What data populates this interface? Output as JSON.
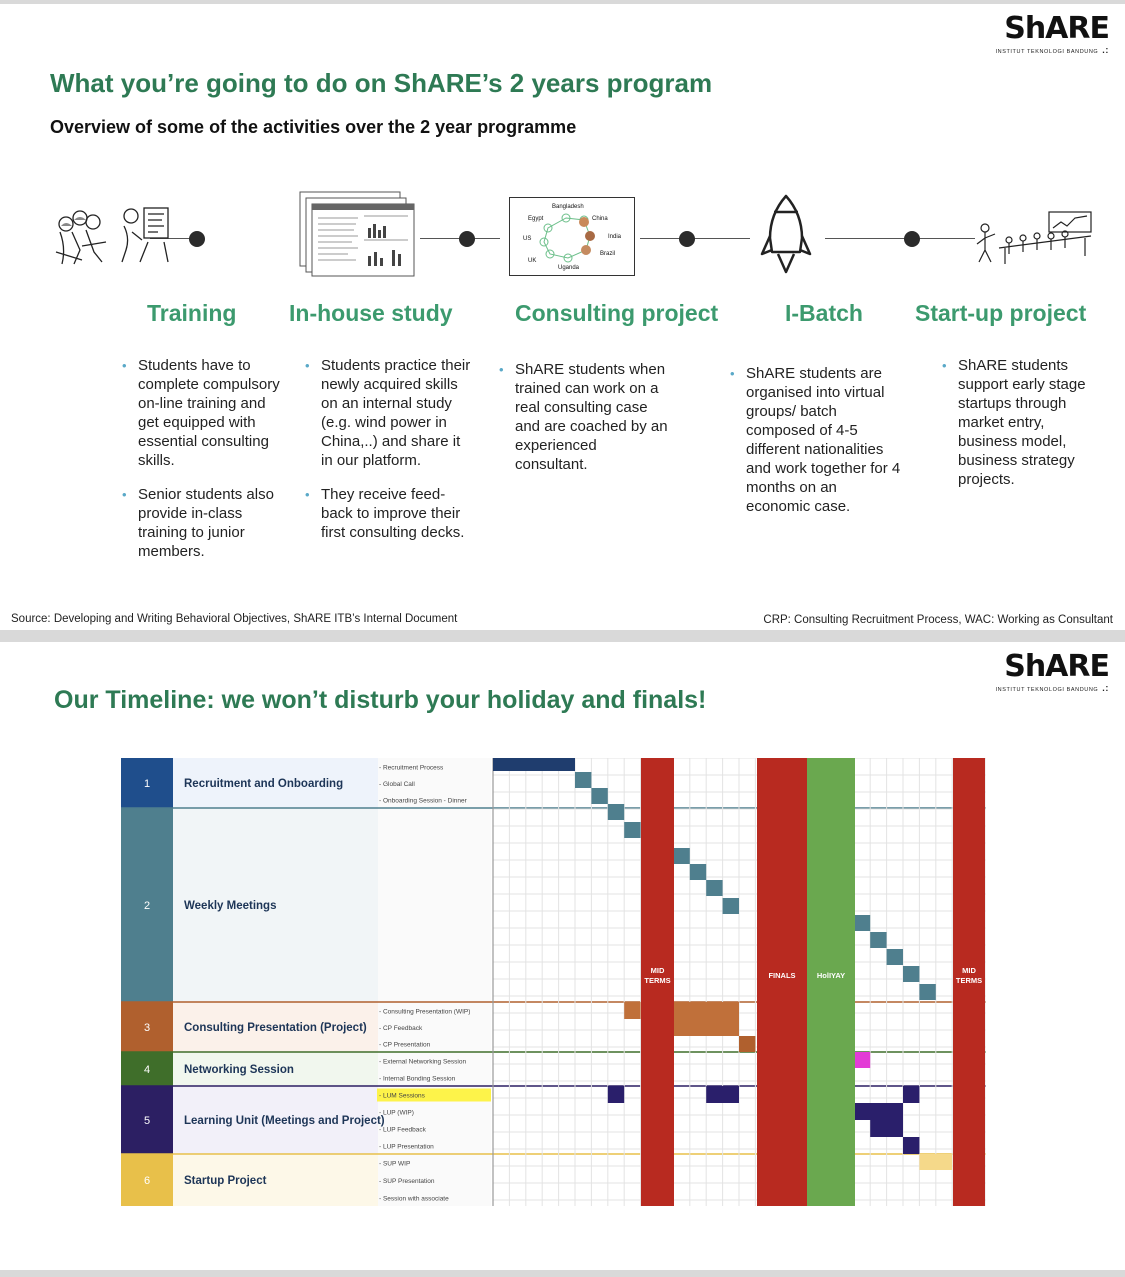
{
  "slide1": {
    "logo": {
      "brand": "ShARE",
      "sub": "INSTITUT TEKNOLOGI BANDUNG"
    },
    "title": "What you’re going to do on ShARE’s 2 years program",
    "subtitle": "Overview of some of the activities over the 2 year programme",
    "map_labels": [
      "Bangladesh",
      "Egypt",
      "China",
      "US",
      "India",
      "Brazil",
      "UK",
      "Uganda"
    ],
    "stages": [
      {
        "title": "Training",
        "bullets": [
          "Students have to complete compulsory on-line training and get equipped with essential consulting skills.",
          "Senior students also provide in-class training to junior members."
        ]
      },
      {
        "title": "In-house study",
        "bullets": [
          "Students practice their newly acquired skills on an internal study (e.g. wind power in China,..) and share it in our platform.",
          "They receive feed-back to improve their first consulting decks."
        ]
      },
      {
        "title": "Consulting project",
        "bullets": [
          "ShARE students when trained can work on a real consulting case and are coached by an experienced consultant."
        ]
      },
      {
        "title": "I-Batch",
        "bullets": [
          "ShARE students are organised into virtual groups/ batch composed of 4-5 different nationalities and work together for 4 months on an economic case."
        ]
      },
      {
        "title": "Start-up project",
        "bullets": [
          "ShARE students support early stage startups through market entry, business model, business strategy projects."
        ]
      }
    ],
    "source": "Source: Developing and Writing Behavioral Objectives, ShARE ITB’s Internal Document",
    "legend": "CRP: Consulting Recruitment Process, WAC: Working as Consultant"
  },
  "slide2": {
    "logo": {
      "brand": "ShARE",
      "sub": "INSTITUT TEKNOLOGI BANDUNG"
    },
    "title": "Our Timeline: we won’t disturb your holiday and finals!",
    "sections": [
      {
        "num": "1",
        "name": "Recruitment and Onboarding",
        "color": "#1f4e8c",
        "tint": "#eef3fb",
        "activities": [
          "- Recruitment Process",
          "- Global Call",
          "- Onboarding Session - Dinner"
        ]
      },
      {
        "num": "2",
        "name": "Weekly Meetings",
        "color": "#4f7f8e",
        "tint": "#f1f5f7",
        "activities": []
      },
      {
        "num": "3",
        "name": "Consulting Presentation (Project)",
        "color": "#b0602e",
        "tint": "#fbf1ea",
        "activities": [
          "- Consulting Presentation (WIP)",
          "- CP Feedback",
          "- CP Presentation"
        ]
      },
      {
        "num": "4",
        "name": "Networking Session",
        "color": "#3f6e2a",
        "tint": "#f1f7ee",
        "activities": [
          "- External Networking Session",
          "- Internal Bonding Session"
        ]
      },
      {
        "num": "5",
        "name": "Learning Unit (Meetings and Project)",
        "color": "#2c1f63",
        "tint": "#f2f0f9",
        "activities": [
          "- LUM Sessions",
          "- LUP (WIP)",
          "- LUP Feedback",
          "- LUP Presentation"
        ]
      },
      {
        "num": "6",
        "name": "Startup Project",
        "color": "#e8c04a",
        "tint": "#fdf8e8",
        "activities": [
          "- SUP WIP",
          "- SUP Presentation",
          "- Session with associate"
        ]
      }
    ],
    "highlighted_activity": "- LUM Sessions",
    "bands": [
      {
        "label": "MID TERMS",
        "color": "#b82a20"
      },
      {
        "label": "FINALS",
        "color": "#b82a20"
      },
      {
        "label": "HolIYAY",
        "color": "#6aa84f"
      },
      {
        "label": "MID TERMS",
        "color": "#b82a20"
      }
    ],
    "colors": {
      "recruit": "#1f3d6e",
      "weekly": "#4f7f8e",
      "cp": "#c0703a",
      "cp_dark": "#b0602e",
      "network": "#e33bd6",
      "lum": "#2a1f6b",
      "startup": "#f5d98a",
      "green_title": "#2e7a54"
    }
  }
}
